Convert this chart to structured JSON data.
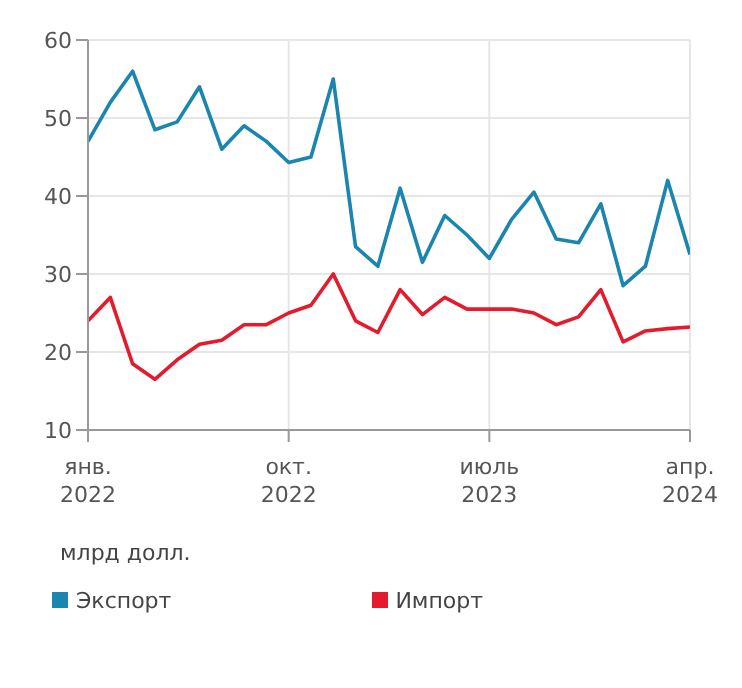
{
  "chart_data": {
    "type": "line",
    "ylabel": "млрд долл.",
    "categories": [
      "янв. 2022",
      null,
      null,
      null,
      null,
      null,
      null,
      null,
      null,
      "окт. 2022",
      null,
      null,
      null,
      null,
      null,
      null,
      null,
      null,
      "июль 2023",
      null,
      null,
      null,
      null,
      null,
      null,
      null,
      null,
      "апр. 2024"
    ],
    "series": [
      {
        "name": "Экспорт",
        "color": "#1a86b0",
        "values": [
          47,
          52,
          56,
          48.5,
          49.5,
          54,
          46,
          49,
          47,
          44.3,
          45,
          55,
          33.5,
          31,
          41,
          31.5,
          37.5,
          35,
          32,
          37,
          40.5,
          34.5,
          34,
          39,
          28.5,
          31,
          42,
          32.5
        ]
      },
      {
        "name": "Импорт",
        "color": "#e31b2d",
        "values": [
          24,
          27,
          18.5,
          16.5,
          19,
          21,
          21.5,
          23.5,
          23.5,
          25,
          26,
          30,
          24,
          22.5,
          28,
          24.8,
          27,
          25.5,
          25.5,
          25.5,
          25,
          23.5,
          24.5,
          28,
          21.3,
          22.7,
          23,
          23.2
        ]
      }
    ],
    "ylim": [
      10,
      60
    ],
    "yticks": [
      10,
      20,
      30,
      40,
      50,
      60
    ],
    "grid": true,
    "legend": "bottom",
    "marker": "none",
    "line_style": "solid"
  }
}
